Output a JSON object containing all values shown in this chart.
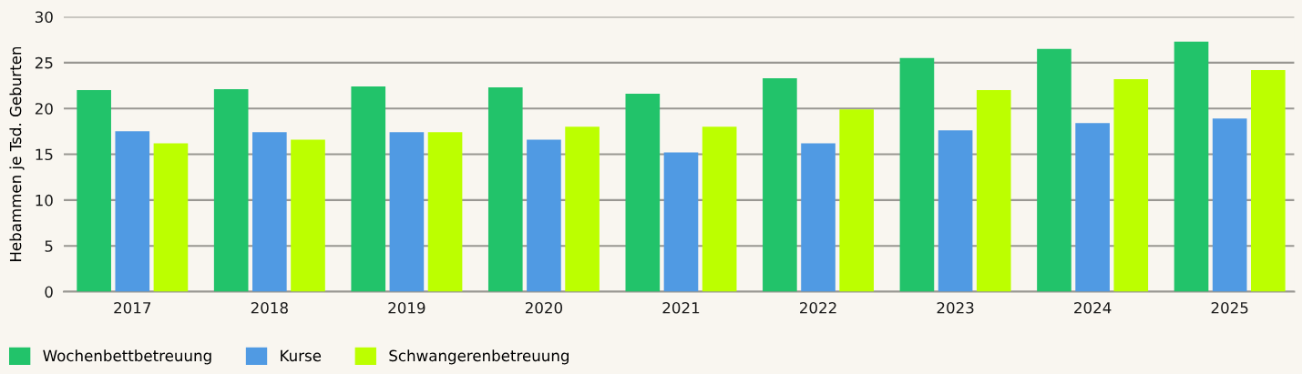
{
  "chart_data": {
    "type": "bar",
    "ylabel": "Hebammen je Tsd. Geburten",
    "categories": [
      "2017",
      "2018",
      "2019",
      "2020",
      "2021",
      "2022",
      "2023",
      "2024",
      "2025"
    ],
    "series": [
      {
        "name": "Wochenbettbetreuung",
        "color": "#22c36a",
        "values": [
          22.0,
          22.1,
          22.4,
          22.3,
          21.6,
          23.3,
          25.5,
          26.5,
          27.3
        ]
      },
      {
        "name": "Kurse",
        "color": "#509ae3",
        "values": [
          17.5,
          17.4,
          17.4,
          16.6,
          15.2,
          16.2,
          17.6,
          18.4,
          18.9
        ]
      },
      {
        "name": "Schwangerenbetreuung",
        "color": "#bcff00",
        "values": [
          16.2,
          16.6,
          17.4,
          18.0,
          18.0,
          19.9,
          22.0,
          23.2,
          24.2
        ]
      }
    ],
    "ylim": [
      0,
      30
    ],
    "yticks": [
      0,
      5,
      10,
      15,
      20,
      25,
      30
    ],
    "grid": "y",
    "legend": "bottom left"
  }
}
